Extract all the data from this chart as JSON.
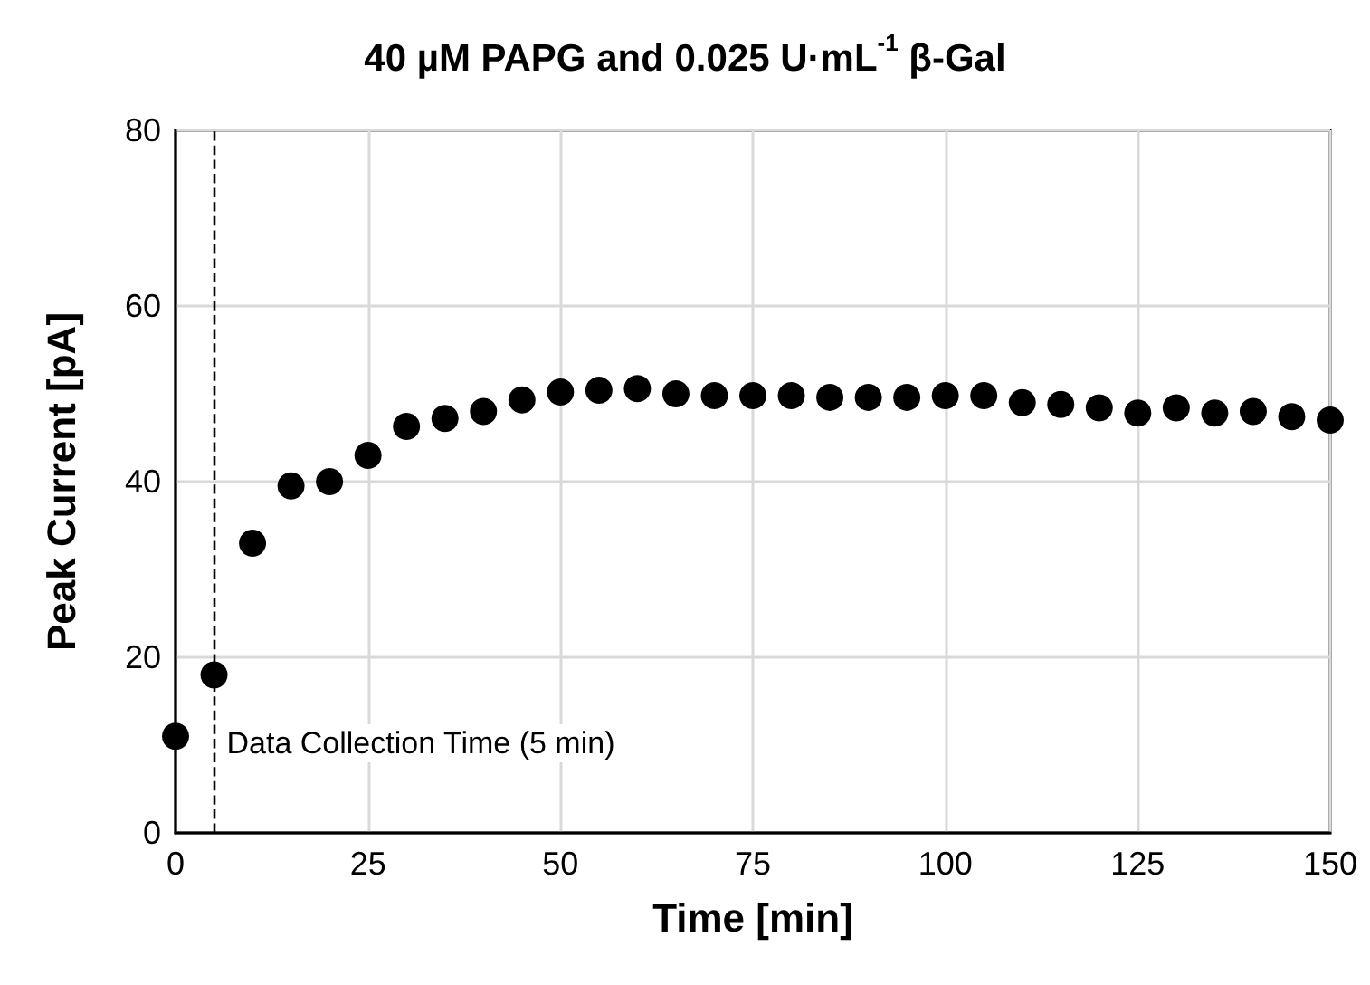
{
  "chart_data": {
    "type": "scatter",
    "title": "40 µM PAPG and 0.025 U·mL$^{-1}$ β-Gal",
    "xlabel": "Time [min]",
    "ylabel": "Peak Current [pA]",
    "x": [
      0,
      5,
      10,
      15,
      20,
      25,
      30,
      35,
      40,
      45,
      50,
      55,
      60,
      65,
      70,
      75,
      80,
      85,
      90,
      95,
      100,
      105,
      110,
      115,
      120,
      125,
      130,
      135,
      140,
      145,
      150
    ],
    "series": [
      {
        "color": "#000000",
        "values": [
          11,
          18,
          33,
          39.5,
          40,
          43,
          46.3,
          47.2,
          48,
          49.3,
          50.2,
          50.4,
          50.6,
          50,
          49.8,
          49.8,
          49.8,
          49.6,
          49.6,
          49.6,
          49.8,
          49.8,
          49,
          48.8,
          48.4,
          47.8,
          48.4,
          47.8,
          48,
          47.4,
          47
        ]
      }
    ],
    "xlim": [
      0,
      150
    ],
    "xticks": [
      0,
      25,
      50,
      75,
      100,
      125,
      150
    ],
    "ylim": [
      0,
      80
    ],
    "yticks": [
      0,
      20,
      40,
      60,
      80
    ],
    "ref_lines": [
      {
        "axis": "x",
        "value": 5,
        "label": "Data Collection Time (5 min)",
        "color": "#000000",
        "line_style": "dashed"
      }
    ],
    "grid": true,
    "marker": "circle"
  }
}
